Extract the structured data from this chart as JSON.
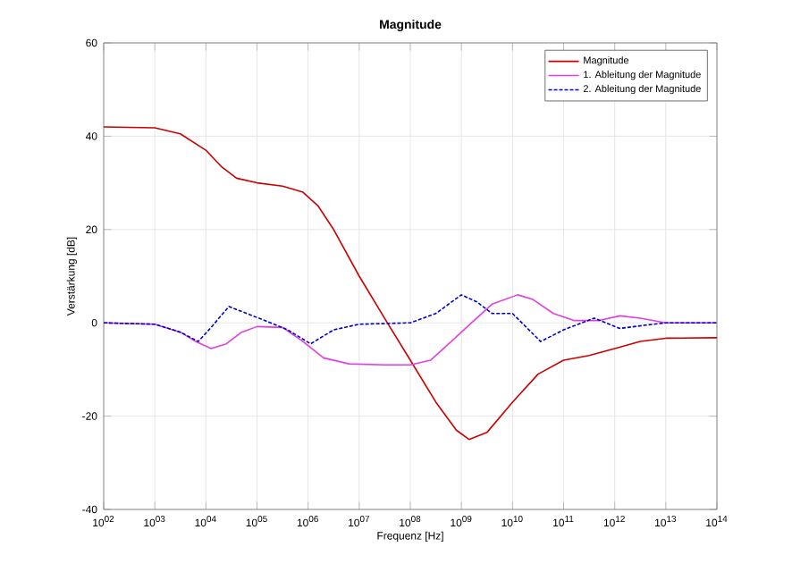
{
  "chart_data": {
    "type": "line",
    "title": "Magnitude",
    "xlabel": "Frequenz [Hz]",
    "ylabel": "Verstärkung [dB]",
    "log": "x",
    "grid": true,
    "legend": "top right",
    "marker": "none",
    "xlim": [
      100.0,
      100000000000000.0
    ],
    "ylim": [
      -40,
      60
    ],
    "xticks": [
      {
        "value": 100.0,
        "label": "10$^{02}$"
      },
      {
        "value": 1000.0,
        "label": "10$^{03}$"
      },
      {
        "value": 10000.0,
        "label": "10$^{04}$"
      },
      {
        "value": 100000.0,
        "label": "10$^{05}$"
      },
      {
        "value": 1000000.0,
        "label": "10$^{06}$"
      },
      {
        "value": 10000000.0,
        "label": "10$^{07}$"
      },
      {
        "value": 100000000.0,
        "label": "10$^{08}$"
      },
      {
        "value": 1000000000.0,
        "label": "10$^{09}$"
      },
      {
        "value": 10000000000.0,
        "label": "10$^{10}$"
      },
      {
        "value": 100000000000.0,
        "label": "10$^{11}$"
      },
      {
        "value": 1000000000000.0,
        "label": "10$^{12}$"
      },
      {
        "value": 10000000000000.0,
        "label": "10$^{13}$"
      },
      {
        "value": 100000000000000.0,
        "label": "10$^{14}$"
      }
    ],
    "yticks": [
      -40,
      -20,
      0,
      20,
      40,
      60
    ],
    "series": [
      {
        "name": "Magnitude",
        "color": "#cc0000",
        "line_style": "solid",
        "x": [
          100.0,
          1000.0,
          3160.0,
          10000.0,
          20000.0,
          39800.0,
          100000.0,
          316000.0,
          794000.0,
          1580000.0,
          3160000.0,
          10000000.0,
          35500000.0,
          100000000.0,
          316000000.0,
          794000000.0,
          1410000000.0,
          3160000000.0,
          10000000000.0,
          31600000000.0,
          100000000000.0,
          316000000000.0,
          1000000000000.0,
          3160000000000.0,
          10000000000000.0,
          100000000000000.0
        ],
        "values": [
          42,
          41.8,
          40.5,
          37,
          33.5,
          31,
          30,
          29.3,
          28,
          25,
          20,
          10,
          0,
          -8,
          -17,
          -23,
          -25,
          -23.5,
          -17,
          -11,
          -8,
          -7,
          -5.5,
          -4,
          -3.3,
          -3.2
        ]
      },
      {
        "name": "1. Ableitung der Magnitude",
        "color": "#e040e0",
        "line_style": "solid",
        "x": [
          100.0,
          1000.0,
          3160.0,
          6310.0,
          12600.0,
          25100.0,
          50100.0,
          100000.0,
          316000.0,
          794000.0,
          2000000.0,
          6310000.0,
          31600000.0,
          100000000.0,
          251000000.0,
          631000000.0,
          1580000000.0,
          3980000000.0,
          12600000000.0,
          25100000000.0,
          63100000000.0,
          158000000000.0,
          501000000000.0,
          1260000000000.0,
          3160000000000.0,
          10000000000000.0,
          100000000000000.0
        ],
        "values": [
          0,
          -0.3,
          -2,
          -4,
          -5.5,
          -4.5,
          -2,
          -0.8,
          -1,
          -4,
          -7.5,
          -8.8,
          -9,
          -9,
          -8,
          -4,
          0,
          4,
          6,
          5,
          2,
          0.5,
          0.5,
          1.5,
          1,
          0,
          0
        ]
      },
      {
        "name": "2. Ableitung der Magnitude",
        "color": "#0000cc",
        "line_style": "dashed",
        "x": [
          100.0,
          1000.0,
          3160.0,
          7080.0,
          12600.0,
          28200.0,
          63100.0,
          158000.0,
          398000.0,
          1120000.0,
          3160000.0,
          10000000.0,
          100000000.0,
          316000000.0,
          1000000000.0,
          2000000000.0,
          3980000000.0,
          10000000000.0,
          35500000000.0,
          100000000000.0,
          398000000000.0,
          1260000000000.0,
          3980000000000.0,
          10000000000000.0,
          100000000000000.0
        ],
        "values": [
          0,
          -0.3,
          -2,
          -4,
          -1,
          3.5,
          2,
          0.3,
          -1.5,
          -4.5,
          -1.5,
          -0.3,
          0,
          2,
          6,
          4.5,
          2,
          2,
          -4,
          -1.5,
          1,
          -1.2,
          -0.5,
          0,
          0
        ]
      }
    ]
  }
}
